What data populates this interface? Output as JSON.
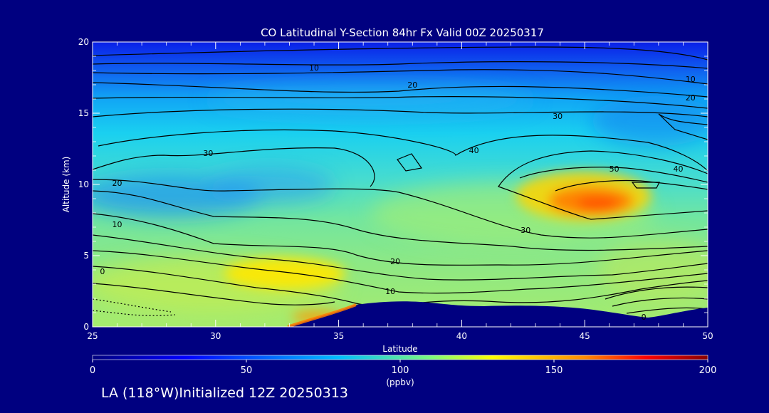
{
  "chart_data": {
    "type": "heatmap",
    "title": "CO Latitudinal Y-Section 84hr  Fx Valid 00Z 20250317",
    "xlabel": "Latitude",
    "ylabel": "Altitude (km)",
    "xlim": [
      25,
      50
    ],
    "ylim": [
      0,
      20
    ],
    "xticks": [
      "25",
      "30",
      "35",
      "40",
      "45",
      "50"
    ],
    "yticks": [
      "0",
      "5",
      "10",
      "15",
      "20"
    ],
    "contour_levels": [
      0,
      10,
      20,
      30,
      40,
      50
    ],
    "contour_labels": [
      {
        "text": "10",
        "x": 34.0,
        "y": 18.2
      },
      {
        "text": "20",
        "x": 38.0,
        "y": 17.0
      },
      {
        "text": "10",
        "x": 49.3,
        "y": 17.4
      },
      {
        "text": "20",
        "x": 49.3,
        "y": 16.1
      },
      {
        "text": "30",
        "x": 43.9,
        "y": 14.8
      },
      {
        "text": "30",
        "x": 29.7,
        "y": 12.2
      },
      {
        "text": "40",
        "x": 40.5,
        "y": 12.4
      },
      {
        "text": "50",
        "x": 46.2,
        "y": 11.1
      },
      {
        "text": "40",
        "x": 48.8,
        "y": 11.1
      },
      {
        "text": "20",
        "x": 26.0,
        "y": 10.1
      },
      {
        "text": "10",
        "x": 26.0,
        "y": 7.2
      },
      {
        "text": "30",
        "x": 42.6,
        "y": 6.8
      },
      {
        "text": "0",
        "x": 25.4,
        "y": 3.9
      },
      {
        "text": "20",
        "x": 37.3,
        "y": 4.6
      },
      {
        "text": "10",
        "x": 37.1,
        "y": 2.5
      },
      {
        "text": "0",
        "x": 47.4,
        "y": 0.7
      }
    ],
    "colorbar": {
      "min": 0,
      "max": 200,
      "ticks": [
        "0",
        "50",
        "100",
        "150",
        "200"
      ],
      "units": "(ppbv)",
      "colors": [
        "#000080",
        "#0000ff",
        "#00bfff",
        "#7cfc7c",
        "#ffff00",
        "#ff8c00",
        "#ff0000",
        "#8b0000"
      ]
    },
    "hotspots": [
      {
        "lat": 32.8,
        "alt": 3.5,
        "value": 120
      },
      {
        "lat": 45.5,
        "alt": 8.8,
        "value": 150
      },
      {
        "lat": 34.0,
        "alt": 0.8,
        "value": 140
      }
    ],
    "terrain_color": "#000080"
  },
  "footer": "LA (118°W)Initialized 12Z 20250313"
}
